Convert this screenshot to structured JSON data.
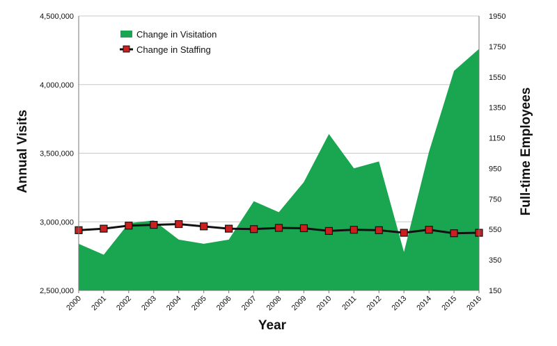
{
  "chart_data": {
    "type": "area",
    "xlabel": "Year",
    "ylabel_left": "Annual Visits",
    "ylabel_right": "Full-time Employees",
    "x": [
      "2000",
      "2001",
      "2002",
      "2003",
      "2004",
      "2005",
      "2006",
      "2007",
      "2008",
      "2009",
      "2010",
      "2011",
      "2012",
      "2013",
      "2014",
      "2015",
      "2016"
    ],
    "ylim_left": [
      2500000,
      4500000
    ],
    "yticks_left": [
      "2,500,000",
      "3,000,000",
      "3,500,000",
      "4,000,000",
      "4,500,000"
    ],
    "ylim_right": [
      150,
      1950
    ],
    "yticks_right": [
      "150",
      "350",
      "550",
      "750",
      "950",
      "1150",
      "1350",
      "1550",
      "1750",
      "1950"
    ],
    "grid": "horizontal",
    "legend_position": "top-left",
    "series": [
      {
        "name": "Change in Visitation",
        "axis": "left",
        "style": "area",
        "color": "#1aa551",
        "values": [
          2840000,
          2760000,
          2990000,
          3010000,
          2870000,
          2840000,
          2870000,
          3150000,
          3070000,
          3290000,
          3640000,
          3390000,
          3440000,
          2780000,
          3510000,
          4100000,
          4260000
        ]
      },
      {
        "name": "Change in Staffing",
        "axis": "right",
        "style": "line-marker",
        "color": "#111111",
        "marker_color": "#cc1f1f",
        "values": [
          545,
          555,
          575,
          580,
          585,
          570,
          555,
          552,
          560,
          558,
          540,
          548,
          545,
          528,
          548,
          525,
          528
        ]
      }
    ]
  }
}
